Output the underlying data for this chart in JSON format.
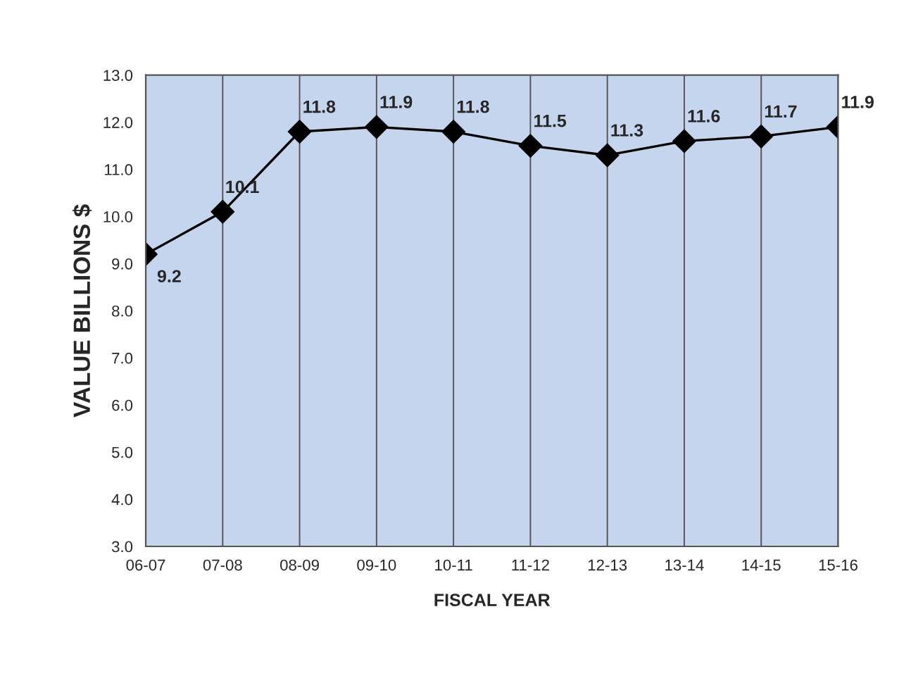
{
  "chart_data": {
    "type": "line",
    "xlabel": "FISCAL YEAR",
    "ylabel": "VALUE BILLIONS $",
    "categories": [
      "06-07",
      "07-08",
      "08-09",
      "09-10",
      "10-11",
      "11-12",
      "12-13",
      "13-14",
      "14-15",
      "15-16"
    ],
    "series": [
      {
        "color": "#000000",
        "values": [
          9.2,
          10.1,
          11.8,
          11.9,
          11.8,
          11.5,
          11.3,
          11.6,
          11.7,
          11.9
        ]
      }
    ],
    "ylim": [
      3,
      13
    ],
    "yticks": [
      {
        "value": 3,
        "label": "3.0"
      },
      {
        "value": 4,
        "label": "4.0"
      },
      {
        "value": 5,
        "label": "5.0"
      },
      {
        "value": 6,
        "label": "6.0"
      },
      {
        "value": 7,
        "label": "7.0"
      },
      {
        "value": 8,
        "label": "8.0"
      },
      {
        "value": 9,
        "label": "9.0"
      },
      {
        "value": 10,
        "label": "10.0"
      },
      {
        "value": 11,
        "label": "11.0"
      },
      {
        "value": 12,
        "label": "12.0"
      },
      {
        "value": 13,
        "label": "13.0"
      }
    ],
    "grid": "x",
    "marker": "diamond",
    "line_style": "solid",
    "data_labels": true
  }
}
